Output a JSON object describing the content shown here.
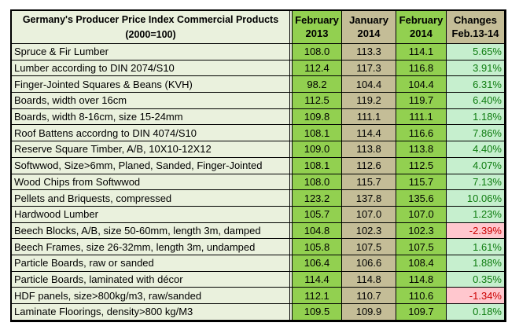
{
  "table": {
    "title_line1": "Germany's Producer Price Index Commercial Products",
    "title_line2": "(2000=100)",
    "columns": [
      {
        "line1": "February",
        "line2": "2013"
      },
      {
        "line1": "January",
        "line2": "2014"
      },
      {
        "line1": "February",
        "line2": "2014"
      },
      {
        "line1": "Changes",
        "line2": "Feb.13-14"
      }
    ]
  },
  "colors": {
    "bright_green": "#92D050",
    "olive": "#C4BD97",
    "pale_green": "#EAF1DD",
    "positive_bg": "#C6EFCE",
    "positive_text": "#0E7C10",
    "negative_bg": "#FFC7CE",
    "negative_text": "#CC0000",
    "border": "#000000"
  },
  "chart_data": {
    "type": "table",
    "title": "Germany's Producer Price Index Commercial Products (2000=100)",
    "columns": [
      "February 2013",
      "January 2014",
      "February 2014",
      "Changes Feb.13-14"
    ],
    "rows": [
      [
        "Spruce & Fir Lumber",
        "108.0",
        "113.3",
        "114.1",
        "5.65%"
      ],
      [
        "Lumber according to DIN 2074/S10",
        "112.4",
        "117.3",
        "116.8",
        "3.91%"
      ],
      [
        "Finger-Jointed Squares & Beans (KVH)",
        "98.2",
        "104.4",
        "104.4",
        "6.31%"
      ],
      [
        "Boards, width over 16cm",
        "112.5",
        "119.2",
        "119.7",
        "6.40%"
      ],
      [
        "Boards, width 8-16cm, size 15-24mm",
        "109.8",
        "111.1",
        "111.1",
        "1.18%"
      ],
      [
        "Roof Battens accordng to DIN 4074/S10",
        "108.1",
        "114.4",
        "116.6",
        "7.86%"
      ],
      [
        "Reserve Square Timber, A/B, 10X10-12X12",
        "109.0",
        "113.8",
        "113.8",
        "4.40%"
      ],
      [
        "Softwwod, Size>6mm, Planed, Sanded, Finger-Jointed",
        "108.1",
        "112.6",
        "112.5",
        "4.07%"
      ],
      [
        "Wood Chips from Softwwod",
        "108.0",
        "115.7",
        "115.7",
        "7.13%"
      ],
      [
        "Pellets and Briquests, compressed",
        "123.2",
        "137.8",
        "135.6",
        "10.06%"
      ],
      [
        "Hardwood Lumber",
        "105.7",
        "107.0",
        "107.0",
        "1.23%"
      ],
      [
        "Beech Blocks, A/B, size 50-60mm, length 3m, damped",
        "104.8",
        "102.3",
        "102.3",
        "-2.39%"
      ],
      [
        "Beech Frames, size 26-32mm, length 3m, undamped",
        "105.8",
        "107.5",
        "107.5",
        "1.61%"
      ],
      [
        "Particle Boards, raw or sanded",
        "106.4",
        "106.6",
        "108.4",
        "1.88%"
      ],
      [
        "Particle Boards, laminated with décor",
        "114.4",
        "114.8",
        "114.8",
        "0.35%"
      ],
      [
        "HDF panels, size>800kg/m3, raw/sanded",
        "112.1",
        "110.7",
        "110.6",
        "-1.34%"
      ],
      [
        "Laminate Floorings, density>800 kg/M3",
        "109.5",
        "109.9",
        "109.7",
        "0.18%"
      ]
    ]
  }
}
